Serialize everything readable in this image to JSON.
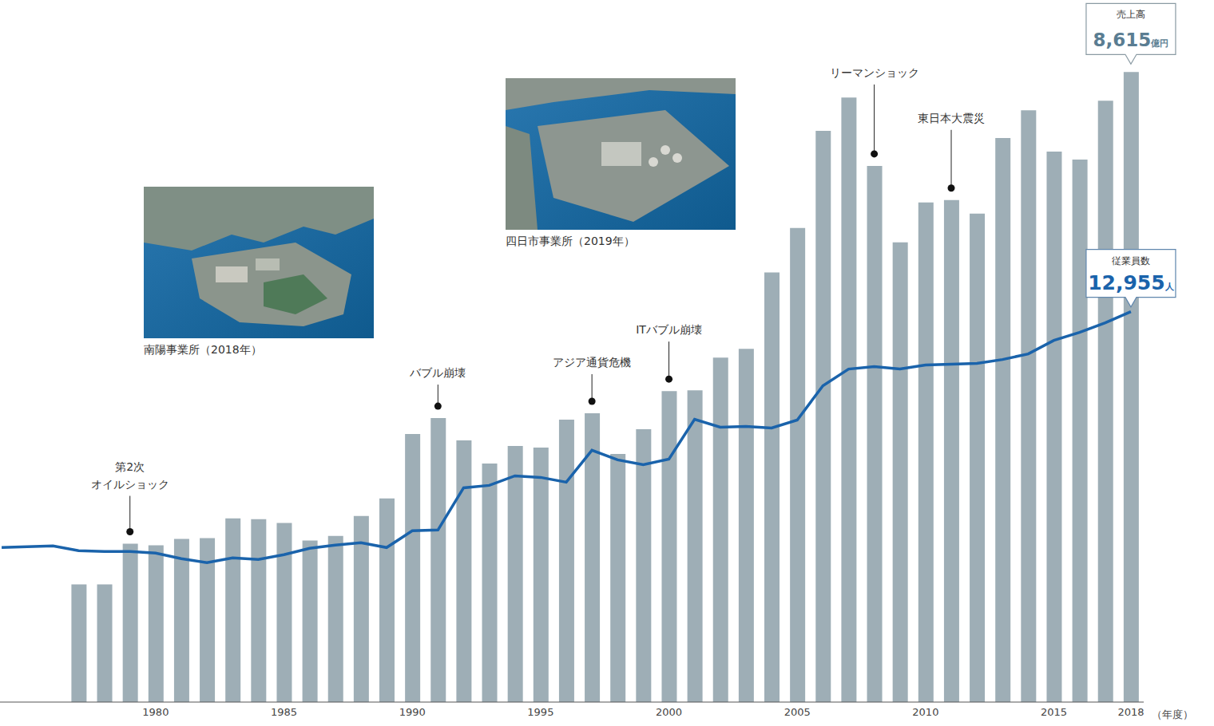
{
  "chart_data": {
    "type": "bar",
    "categories": [
      null,
      null,
      null,
      null,
      null,
      null,
      1980,
      null,
      null,
      null,
      null,
      1985,
      null,
      null,
      null,
      null,
      1990,
      null,
      null,
      null,
      null,
      1995,
      null,
      null,
      null,
      null,
      2000,
      null,
      null,
      null,
      null,
      2005,
      null,
      null,
      null,
      null,
      2010,
      null,
      null,
      null,
      null,
      2015,
      null,
      null,
      2018
    ],
    "x_label": "（年度）",
    "tick_labels": "x",
    "ylim": [
      0,
      9600
    ],
    "y2lim": [
      0,
      23300
    ],
    "series": [
      {
        "name": "売上高",
        "unit": "億円",
        "type": "bar",
        "color": "#9eaeb6",
        "last_value_label": "8,615",
        "values": [
          null,
          null,
          null,
          1610,
          1610,
          2165,
          2143,
          2230,
          2241,
          2513,
          2502,
          2448,
          2208,
          2273,
          2545,
          2785,
          3666,
          3883,
          3579,
          3263,
          3503,
          3481,
          3862,
          3949,
          3394,
          3731,
          4253,
          4264,
          4710,
          4830,
          5874,
          6483,
          7810,
          8267,
          7332,
          6287,
          6831,
          6864,
          6679,
          7712,
          8093,
          7527,
          7419,
          8224,
          8615
        ]
      },
      {
        "name": "従業員数",
        "unit": "人",
        "type": "line",
        "color": "#1a63ab",
        "axis": "y2",
        "last_value_label": "12,955",
        "values": [
          5129,
          5156,
          5182,
          5024,
          4997,
          4997,
          4944,
          4759,
          4627,
          4786,
          4733,
          4891,
          5103,
          5209,
          5288,
          5129,
          5684,
          5711,
          7112,
          7192,
          7509,
          7456,
          7297,
          8355,
          8038,
          7879,
          8064,
          9386,
          9122,
          9148,
          9095,
          9360,
          10497,
          11052,
          11131,
          11052,
          11184,
          11210,
          11237,
          11369,
          11554,
          12004,
          12268,
          12585,
          12955
        ]
      }
    ],
    "annotations": [
      {
        "text": "第2次\nオイルショック",
        "index": 5
      },
      {
        "text": "バブル崩壊",
        "index": 17
      },
      {
        "text": "アジア通貨危機",
        "index": 23
      },
      {
        "text": "ITバブル崩壊",
        "index": 26
      },
      {
        "text": "リーマンショック",
        "index": 34
      },
      {
        "text": "東日本大震災",
        "index": 37
      }
    ],
    "photos": [
      {
        "caption": "南陽事業所（2018年）"
      },
      {
        "caption": "四日市事業所（2019年）"
      }
    ]
  }
}
